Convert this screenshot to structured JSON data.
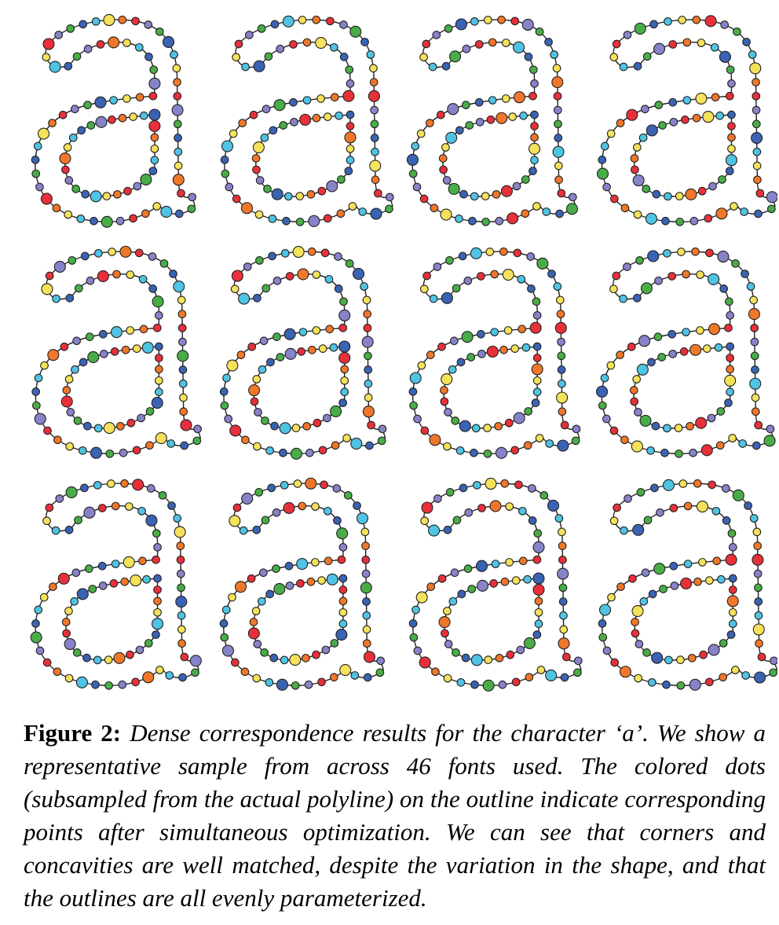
{
  "caption": {
    "label": "Figure 2:",
    "text": "Dense correspondence results for the character ‘a’. We show a representative sample from across 46 fonts used. The colored dots (subsampled from the actual polyline) on the outline indicate corresponding points after simultaneous optimization. We can see that corners and concavities are well matched, despite the variation in the shape, and that the outlines are all evenly parameterized."
  },
  "glyph_character": "a",
  "dot_colors": [
    "#e8303a",
    "#f5e15a",
    "#3a63b4",
    "#8783c9",
    "#f0772a",
    "#4fc3e3",
    "#49ad47"
  ],
  "fonts_shown": 12
}
